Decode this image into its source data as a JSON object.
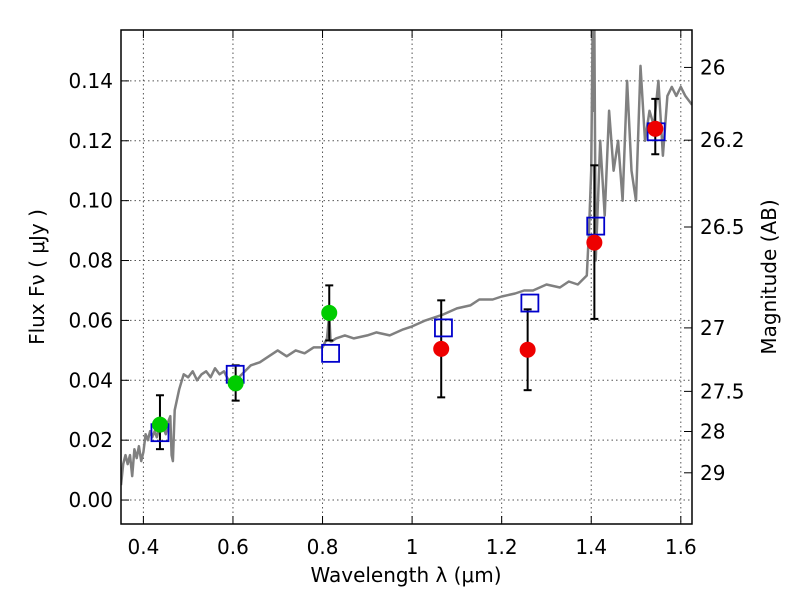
{
  "chart_data": {
    "type": "scatter",
    "xlabel": "Wavelength  λ (μm)",
    "ylabel": "Flux  Fν  ( μJy )",
    "ylabel_right": "Magnitude (AB)",
    "xlim": [
      0.35,
      1.625
    ],
    "ylim": [
      -0.008,
      0.157
    ],
    "grid": true,
    "x_ticks": [
      {
        "value": 0.4,
        "label": "0.4"
      },
      {
        "value": 0.6,
        "label": "0.6"
      },
      {
        "value": 0.8,
        "label": "0.8"
      },
      {
        "value": 1.0,
        "label": "1"
      },
      {
        "value": 1.2,
        "label": "1.2"
      },
      {
        "value": 1.4,
        "label": "1.4"
      },
      {
        "value": 1.6,
        "label": "1.6"
      }
    ],
    "y_ticks": [
      {
        "value": 0.0,
        "label": "0.00"
      },
      {
        "value": 0.02,
        "label": "0.02"
      },
      {
        "value": 0.04,
        "label": "0.04"
      },
      {
        "value": 0.06,
        "label": "0.06"
      },
      {
        "value": 0.08,
        "label": "0.08"
      },
      {
        "value": 0.1,
        "label": "0.10"
      },
      {
        "value": 0.12,
        "label": "0.12"
      },
      {
        "value": 0.14,
        "label": "0.14"
      }
    ],
    "right_ticks": [
      {
        "flux": 0.1445,
        "label": "26"
      },
      {
        "flux": 0.1202,
        "label": "26.2"
      },
      {
        "flux": 0.0912,
        "label": "26.5"
      },
      {
        "flux": 0.0575,
        "label": "27"
      },
      {
        "flux": 0.0363,
        "label": "27.5"
      },
      {
        "flux": 0.0229,
        "label": "28"
      },
      {
        "flux": 0.0091,
        "label": "29"
      }
    ],
    "colors": {
      "spectrum": "#808080",
      "model": "#0000cc",
      "green": "#00cc00",
      "red": "#ee0000",
      "error": "#000000",
      "grid": "#555555"
    },
    "spectrum": {
      "x": [
        0.35,
        0.355,
        0.36,
        0.365,
        0.37,
        0.375,
        0.38,
        0.385,
        0.39,
        0.395,
        0.4,
        0.405,
        0.41,
        0.415,
        0.42,
        0.425,
        0.43,
        0.435,
        0.44,
        0.445,
        0.45,
        0.455,
        0.46,
        0.463,
        0.466,
        0.47,
        0.48,
        0.49,
        0.5,
        0.51,
        0.52,
        0.53,
        0.54,
        0.55,
        0.56,
        0.57,
        0.58,
        0.59,
        0.6,
        0.62,
        0.64,
        0.66,
        0.68,
        0.7,
        0.72,
        0.74,
        0.76,
        0.78,
        0.8,
        0.81,
        0.815,
        0.818,
        0.82,
        0.83,
        0.85,
        0.87,
        0.9,
        0.92,
        0.95,
        0.98,
        1.0,
        1.03,
        1.05,
        1.07,
        1.1,
        1.13,
        1.15,
        1.18,
        1.2,
        1.23,
        1.25,
        1.27,
        1.3,
        1.33,
        1.35,
        1.37,
        1.39,
        1.395,
        1.4,
        1.403,
        1.405,
        1.407,
        1.41,
        1.415,
        1.42,
        1.43,
        1.44,
        1.45,
        1.46,
        1.47,
        1.48,
        1.49,
        1.5,
        1.51,
        1.52,
        1.53,
        1.54,
        1.55,
        1.56,
        1.57,
        1.58,
        1.59,
        1.6,
        1.61,
        1.625
      ],
      "y": [
        0.005,
        0.012,
        0.015,
        0.012,
        0.015,
        0.008,
        0.017,
        0.014,
        0.018,
        0.013,
        0.016,
        0.022,
        0.02,
        0.023,
        0.021,
        0.023,
        0.021,
        0.024,
        0.023,
        0.024,
        0.022,
        0.026,
        0.028,
        0.015,
        0.013,
        0.03,
        0.037,
        0.042,
        0.041,
        0.043,
        0.04,
        0.042,
        0.043,
        0.041,
        0.044,
        0.042,
        0.043,
        0.04,
        0.039,
        0.042,
        0.045,
        0.046,
        0.048,
        0.05,
        0.048,
        0.05,
        0.049,
        0.051,
        0.051,
        0.054,
        0.062,
        0.053,
        0.053,
        0.054,
        0.055,
        0.054,
        0.055,
        0.056,
        0.055,
        0.057,
        0.058,
        0.06,
        0.061,
        0.062,
        0.064,
        0.065,
        0.067,
        0.067,
        0.068,
        0.069,
        0.07,
        0.07,
        0.072,
        0.071,
        0.073,
        0.072,
        0.075,
        0.09,
        0.11,
        0.157,
        0.13,
        0.157,
        0.08,
        0.1,
        0.12,
        0.095,
        0.13,
        0.11,
        0.12,
        0.1,
        0.14,
        0.11,
        0.1,
        0.145,
        0.12,
        0.13,
        0.125,
        0.14,
        0.115,
        0.135,
        0.138,
        0.135,
        0.138,
        0.135,
        0.132
      ]
    },
    "model_points": {
      "x": [
        0.437,
        0.605,
        0.818,
        1.07,
        1.263,
        1.41,
        1.545
      ],
      "y": [
        0.0225,
        0.042,
        0.049,
        0.0575,
        0.0658,
        0.0915,
        0.123
      ]
    },
    "green_points": {
      "x": [
        0.437,
        0.606,
        0.815
      ],
      "y": [
        0.0252,
        0.039,
        0.0625
      ],
      "err_low": [
        0.0082,
        0.0058,
        0.0092
      ],
      "err_high": [
        0.0098,
        0.006,
        0.0092
      ]
    },
    "red_points": {
      "x": [
        1.065,
        1.258,
        1.407,
        1.543
      ],
      "y": [
        0.0505,
        0.0502,
        0.086,
        0.124
      ],
      "err_low": [
        0.0162,
        0.0135,
        0.0255,
        0.0085
      ],
      "err_high": [
        0.0162,
        0.0135,
        0.0258,
        0.01
      ]
    }
  }
}
